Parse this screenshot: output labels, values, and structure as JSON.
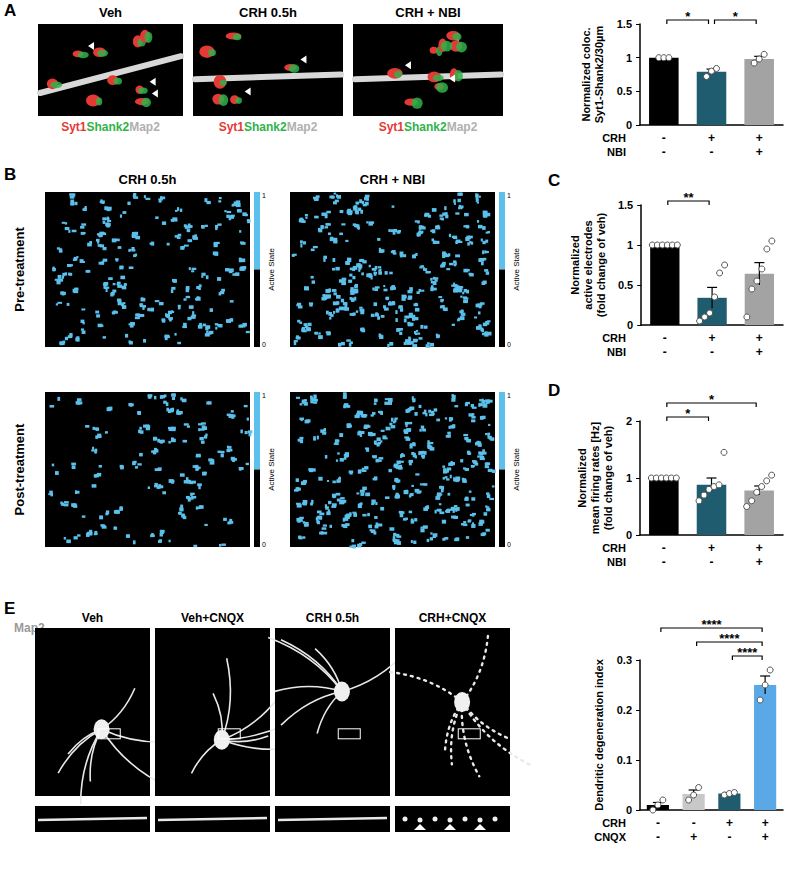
{
  "panel_letters": [
    "A",
    "B",
    "C",
    "D",
    "E"
  ],
  "panel_A_images": {
    "labels": [
      "Veh",
      "CRH 0.5h",
      "CRH + NBI"
    ],
    "stain_labels": [
      {
        "text": "Syt1",
        "color": "#e53935"
      },
      {
        "text": "Shank2",
        "color": "#2fb34a"
      },
      {
        "text": "Map2",
        "color": "#b0b0b0"
      }
    ]
  },
  "panel_B": {
    "columns": [
      "CRH 0.5h",
      "CRH + NBI"
    ],
    "rows": [
      "Pre-treatment",
      "Post-treatment"
    ],
    "colorbar": {
      "label": "Active State",
      "ticks": [
        0,
        1
      ],
      "colors": [
        "#000000",
        "#5bc0eb"
      ]
    }
  },
  "panel_E_images": {
    "labels": [
      "Veh",
      "Veh+CNQX",
      "CRH 0.5h",
      "CRH+CNQX"
    ],
    "stain_label": "Map2"
  },
  "chart_data": [
    {
      "type": "bar",
      "ylabel": "Normalized coloc.\nSyt1-Shank2/30µm",
      "categories": [
        null,
        null,
        null
      ],
      "values": [
        1,
        0.79,
        0.98
      ],
      "errors": [
        0,
        0.04,
        0.04
      ],
      "points": [
        [
          1,
          1,
          1
        ],
        [
          0.72,
          0.8,
          0.84
        ],
        [
          0.92,
          0.98,
          1.05
        ]
      ],
      "colors": [
        "#000000",
        "#1f5c70",
        "#a3a3a3"
      ],
      "ylim": [
        0,
        1.5
      ],
      "yticks": [
        0,
        0.5,
        1,
        1.5
      ],
      "grid": false,
      "conditions": [
        {
          "label": "CRH",
          "signs": [
            "-",
            "+",
            "+"
          ]
        },
        {
          "label": "NBI",
          "signs": [
            "-",
            "-",
            "+"
          ]
        }
      ],
      "significance": [
        {
          "from": 0,
          "to": 1,
          "label": "*"
        },
        {
          "from": 1,
          "to": 2,
          "label": "*"
        }
      ]
    },
    {
      "type": "bar",
      "ylabel": "Normalized\nactive electrodes\n(fold change of veh)",
      "categories": [
        null,
        null,
        null
      ],
      "values": [
        1,
        0.34,
        0.64
      ],
      "errors": [
        0,
        0.13,
        0.14
      ],
      "points": [
        [
          1,
          1,
          1,
          1,
          1,
          1
        ],
        [
          0.05,
          0.1,
          0.15,
          0.35,
          0.65,
          0.75
        ],
        [
          0.1,
          0.45,
          0.55,
          0.7,
          0.95,
          1.05
        ]
      ],
      "colors": [
        "#000000",
        "#1f5c70",
        "#a3a3a3"
      ],
      "ylim": [
        0,
        1.5
      ],
      "yticks": [
        0,
        0.5,
        1,
        1.5
      ],
      "grid": false,
      "conditions": [
        {
          "label": "CRH",
          "signs": [
            "-",
            "+",
            "+"
          ]
        },
        {
          "label": "NBI",
          "signs": [
            "-",
            "-",
            "+"
          ]
        }
      ],
      "significance": [
        {
          "from": 0,
          "to": 1,
          "label": "**"
        }
      ]
    },
    {
      "type": "bar",
      "ylabel": "Normalized\nmean firing rates [Hz]\n(fold change of veh)",
      "categories": [
        null,
        null,
        null
      ],
      "values": [
        1,
        0.88,
        0.78
      ],
      "errors": [
        0,
        0.12,
        0.08
      ],
      "points": [
        [
          1,
          1,
          1,
          1,
          1,
          1
        ],
        [
          0.6,
          0.7,
          0.8,
          0.85,
          0.88,
          1.45
        ],
        [
          0.5,
          0.6,
          0.75,
          0.85,
          0.95,
          1.05
        ]
      ],
      "colors": [
        "#000000",
        "#1f5c70",
        "#a3a3a3"
      ],
      "ylim": [
        0,
        2
      ],
      "yticks": [
        0,
        1,
        2
      ],
      "grid": false,
      "conditions": [
        {
          "label": "CRH",
          "signs": [
            "-",
            "+",
            "+"
          ]
        },
        {
          "label": "NBI",
          "signs": [
            "-",
            "-",
            "+"
          ]
        }
      ],
      "significance": [
        {
          "from": 0,
          "to": 1,
          "label": "*"
        },
        {
          "from": 0,
          "to": 2,
          "label": "*"
        }
      ]
    },
    {
      "type": "bar",
      "ylabel": "Dendritic degeneration index",
      "categories": [
        null,
        null,
        null,
        null
      ],
      "values": [
        0.01,
        0.032,
        0.033,
        0.25
      ],
      "errors": [
        0.005,
        0.008,
        0.002,
        0.018
      ],
      "points": [
        [
          0,
          0.01,
          0.02
        ],
        [
          0.02,
          0.03,
          0.045
        ],
        [
          0.03,
          0.033,
          0.035
        ],
        [
          0.22,
          0.25,
          0.28
        ]
      ],
      "colors": [
        "#000000",
        "#c8c8c8",
        "#1f5c70",
        "#5aa9e6"
      ],
      "ylim": [
        0,
        0.3
      ],
      "yticks": [
        0,
        0.1,
        0.2,
        0.3
      ],
      "grid": false,
      "conditions": [
        {
          "label": "CRH",
          "signs": [
            "-",
            "-",
            "+",
            "+"
          ]
        },
        {
          "label": "CNQX",
          "signs": [
            "-",
            "+",
            "-",
            "+"
          ]
        }
      ],
      "significance": [
        {
          "from": 2,
          "to": 3,
          "label": "****"
        },
        {
          "from": 1,
          "to": 3,
          "label": "****"
        },
        {
          "from": 0,
          "to": 3,
          "label": "****"
        }
      ]
    }
  ]
}
